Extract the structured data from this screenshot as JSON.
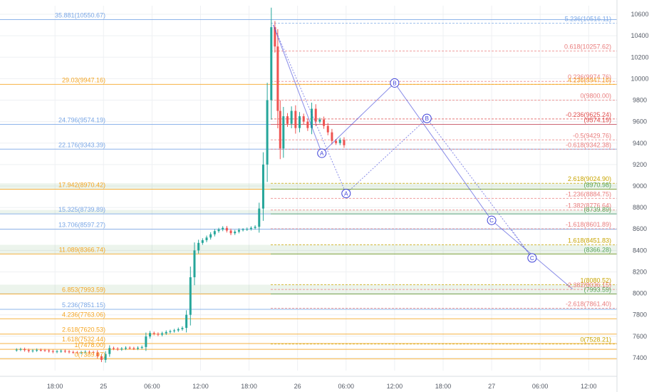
{
  "chart_data": {
    "type": "candlestick",
    "title": "",
    "xlabel": "",
    "ylabel": "",
    "ylim": [
      7280,
      10680
    ],
    "x_ticks": [
      {
        "label": "18:00",
        "t": -6
      },
      {
        "label": "25",
        "t": 0
      },
      {
        "label": "06:00",
        "t": 6
      },
      {
        "label": "12:00",
        "t": 12
      },
      {
        "label": "18:00",
        "t": 18
      },
      {
        "label": "26",
        "t": 24
      },
      {
        "label": "06:00",
        "t": 30
      },
      {
        "label": "12:00",
        "t": 36
      },
      {
        "label": "18:00",
        "t": 42
      },
      {
        "label": "27",
        "t": 48
      },
      {
        "label": "06:00",
        "t": 54
      },
      {
        "label": "12:00",
        "t": 60
      }
    ],
    "y_ticks": [
      7400,
      7600,
      7800,
      8000,
      8200,
      8400,
      8600,
      8800,
      9000,
      9200,
      9400,
      9600,
      9800,
      10000,
      10200,
      10400,
      10600
    ],
    "price_series": [
      [
        -11,
        7470
      ],
      [
        -10,
        7480
      ],
      [
        -9,
        7462
      ],
      [
        -8,
        7473
      ],
      [
        -7,
        7468
      ],
      [
        -6,
        7455
      ],
      [
        -5,
        7464
      ],
      [
        -4,
        7453
      ],
      [
        -3,
        7446
      ],
      [
        -2,
        7455
      ],
      [
        -1,
        7449
      ],
      [
        0,
        7380
      ],
      [
        1,
        7490
      ],
      [
        2,
        7478
      ],
      [
        3,
        7493
      ],
      [
        4,
        7485
      ],
      [
        5,
        7500
      ],
      [
        5.5,
        7598
      ],
      [
        6,
        7630
      ],
      [
        7,
        7615
      ],
      [
        8,
        7640
      ],
      [
        9,
        7655
      ],
      [
        10,
        7678
      ],
      [
        10.5,
        7800
      ],
      [
        11,
        8150
      ],
      [
        11.5,
        8400
      ],
      [
        12,
        8470
      ],
      [
        13,
        8520
      ],
      [
        14,
        8580
      ],
      [
        15,
        8610
      ],
      [
        16,
        8560
      ],
      [
        17,
        8590
      ],
      [
        18,
        8600
      ],
      [
        19,
        8620
      ],
      [
        19.5,
        8790
      ],
      [
        20,
        9200
      ],
      [
        20.5,
        9800
      ],
      [
        21,
        10480
      ],
      [
        21.4,
        10300
      ],
      [
        21.7,
        9700
      ],
      [
        22,
        9350
      ],
      [
        22.5,
        9650
      ],
      [
        23,
        9580
      ],
      [
        23.5,
        9700
      ],
      [
        24,
        9540
      ],
      [
        24.5,
        9650
      ],
      [
        25,
        9600
      ],
      [
        25.5,
        9540
      ],
      [
        26,
        9720
      ],
      [
        26.5,
        9600
      ],
      [
        27,
        9620
      ],
      [
        27.5,
        9560
      ],
      [
        28,
        9500
      ],
      [
        28.5,
        9420
      ],
      [
        29,
        9400
      ],
      [
        29.5,
        9430
      ],
      [
        30,
        9380
      ]
    ],
    "fib_levels_left": [
      {
        "label": "35.881(10550.67)",
        "value": 10550.67,
        "color": "#7aa7e6"
      },
      {
        "label": "29.03(9947.16)",
        "value": 9947.16,
        "color": "#f5a623"
      },
      {
        "label": "24.796(9574.19)",
        "value": 9574.19,
        "color": "#7aa7e6"
      },
      {
        "label": "22.176(9343.39)",
        "value": 9343.39,
        "color": "#7aa7e6"
      },
      {
        "label": "17.942(8970.42)",
        "value": 8970.42,
        "color": "#f5a623"
      },
      {
        "label": "15.325(8739.89)",
        "value": 8739.89,
        "color": "#7aa7e6"
      },
      {
        "label": "13.706(8597.27)",
        "value": 8597.27,
        "color": "#7aa7e6"
      },
      {
        "label": "11.089(8366.74)",
        "value": 8366.74,
        "color": "#f5a623"
      },
      {
        "label": "6.853(7993.59)",
        "value": 7993.59,
        "color": "#f5a623"
      },
      {
        "label": "5.236(7851.15)",
        "value": 7851.15,
        "color": "#7aa7e6"
      },
      {
        "label": "4.236(7763.06)",
        "value": 7763.06,
        "color": "#f5a623"
      },
      {
        "label": "2.618(7620.53)",
        "value": 7620.53,
        "color": "#f5a623"
      },
      {
        "label": "1.618(7532.44)",
        "value": 7532.44,
        "color": "#f5a623"
      },
      {
        "label": "1(7478.00)",
        "value": 7478.0,
        "color": "#f5a623"
      },
      {
        "label": "0(7389.97)",
        "value": 7389.97,
        "color": "#f5a623"
      }
    ],
    "fib_levels_right": [
      {
        "label": "5.236(10516.11)",
        "value": 10516.11,
        "color": "#7aa7e6"
      },
      {
        "label": "0.618(10257.62)",
        "value": 10257.62,
        "color": "#e97c7c"
      },
      {
        "label": "0.236(9974.76)",
        "value": 9974.76,
        "color": "#e97c7c"
      },
      {
        "label": "4.236(9947.16)",
        "value": 9947.16,
        "color": "#f5a623"
      },
      {
        "label": "0(9800.00)",
        "value": 9800.0,
        "color": "#e97c7c"
      },
      {
        "label": "-0.236(9625.24)",
        "value": 9625.24,
        "color": "#e04c4c"
      },
      {
        "label": "(9574.19)",
        "value": 9574.19,
        "color": "#e04c4c"
      },
      {
        "label": "-0.5(9429.76)",
        "value": 9429.76,
        "color": "#e97c7c"
      },
      {
        "label": "-0.618(9342.38)",
        "value": 9342.38,
        "color": "#e97c7c"
      },
      {
        "label": "2.618(9024.90)",
        "value": 9024.9,
        "color": "#c8a400"
      },
      {
        "label": "(8970.98)",
        "value": 8970.98,
        "color": "#5aa85a"
      },
      {
        "label": "-1.236(8884.75)",
        "value": 8884.75,
        "color": "#e97c7c"
      },
      {
        "label": "-1.382(8776.64)",
        "value": 8776.64,
        "color": "#e97c7c"
      },
      {
        "label": "(8739.89)",
        "value": 8739.89,
        "color": "#5aa85a"
      },
      {
        "label": "-1.618(8601.89)",
        "value": 8601.89,
        "color": "#e97c7c"
      },
      {
        "label": "1.618(8451.83)",
        "value": 8451.83,
        "color": "#c8a400"
      },
      {
        "label": "(8366.28)",
        "value": 8366.28,
        "color": "#5aa85a"
      },
      {
        "label": "1(8080.52)",
        "value": 8080.52,
        "color": "#c8a400"
      },
      {
        "label": "-2.382(8036.15)",
        "value": 8036.15,
        "color": "#e97c7c"
      },
      {
        "label": "(7993.59)",
        "value": 7993.59,
        "color": "#5aa85a"
      },
      {
        "label": "-2.618(7861.40)",
        "value": 7861.4,
        "color": "#e97c7c"
      },
      {
        "label": "0(7528.21)",
        "value": 7528.21,
        "color": "#c8a400"
      }
    ],
    "zones": [
      {
        "from": 8970.42,
        "to": 9024.9
      },
      {
        "from": 8739.89,
        "to": 8776.64
      },
      {
        "from": 8366.74,
        "to": 8451.83
      },
      {
        "from": 7993.59,
        "to": 8080.52
      }
    ],
    "wave_points": [
      {
        "label": "A",
        "t": 27,
        "value": 9305
      },
      {
        "label": "A",
        "t": 30,
        "value": 8930
      },
      {
        "label": "B",
        "t": 36,
        "value": 9960
      },
      {
        "label": "B",
        "t": 40,
        "value": 9630
      },
      {
        "label": "C",
        "t": 48,
        "value": 8680
      },
      {
        "label": "C",
        "t": 53,
        "value": 8330
      }
    ],
    "colors": {
      "up": "#26a69a",
      "down": "#ef5350",
      "wave": "#3b3fd8"
    }
  }
}
